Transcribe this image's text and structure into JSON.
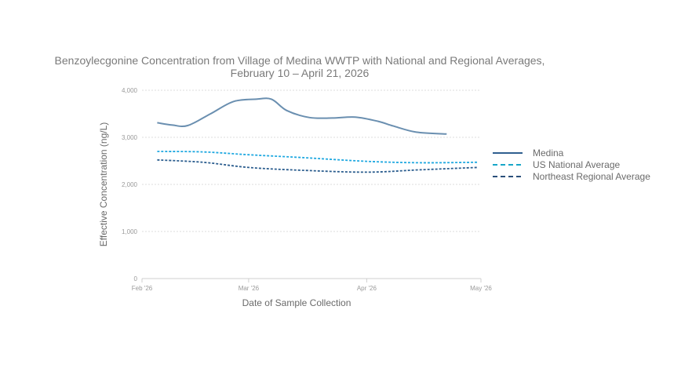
{
  "chart_data": {
    "type": "line",
    "title_line1": "Benzoylecgonine Concentration from Village of Medina WWTP with National and Regional Averages,",
    "title_line2": "February 10 – April 21, 2026",
    "xlabel": "Date of Sample Collection",
    "ylabel": "Effective Concentration (ng/L)",
    "x_ticks": [
      {
        "date": "2026-02-01",
        "label": "Feb '26"
      },
      {
        "date": "2026-03-01",
        "label": "Mar '26"
      },
      {
        "date": "2026-04-01",
        "label": "Apr '26"
      },
      {
        "date": "2026-05-01",
        "label": "May '26"
      }
    ],
    "xlim": [
      "2026-02-01",
      "2026-05-01"
    ],
    "y_ticks": [
      0,
      1000,
      2000,
      3000,
      4000
    ],
    "y_tick_labels": [
      "0",
      "1,000",
      "2,000",
      "3,000",
      "4,000"
    ],
    "ylim": [
      0,
      4000
    ],
    "grid": true,
    "legend_position": "right",
    "series": [
      {
        "name": "Medina",
        "color": "#6a8fb0",
        "legend_color": "#2f5f8f",
        "style": "solid",
        "points": [
          [
            "2026-02-05",
            3310
          ],
          [
            "2026-02-09",
            3260
          ],
          [
            "2026-02-13",
            3250
          ],
          [
            "2026-02-19",
            3500
          ],
          [
            "2026-02-25",
            3760
          ],
          [
            "2026-03-03",
            3810
          ],
          [
            "2026-03-07",
            3810
          ],
          [
            "2026-03-11",
            3570
          ],
          [
            "2026-03-17",
            3420
          ],
          [
            "2026-03-23",
            3410
          ],
          [
            "2026-03-29",
            3430
          ],
          [
            "2026-04-04",
            3340
          ],
          [
            "2026-04-08",
            3240
          ],
          [
            "2026-04-14",
            3110
          ],
          [
            "2026-04-22",
            3070
          ]
        ]
      },
      {
        "name": "US National Average",
        "color": "#1fa8e0",
        "legend_color": "#17a6c8",
        "style": "dashed",
        "points": [
          [
            "2026-02-05",
            2700
          ],
          [
            "2026-02-17",
            2690
          ],
          [
            "2026-03-01",
            2630
          ],
          [
            "2026-03-15",
            2570
          ],
          [
            "2026-04-01",
            2490
          ],
          [
            "2026-04-15",
            2460
          ],
          [
            "2026-04-30",
            2470
          ]
        ]
      },
      {
        "name": "Northeast Regional Average",
        "color": "#2b5d8e",
        "legend_color": "#2b4f7a",
        "style": "dashed",
        "points": [
          [
            "2026-02-05",
            2520
          ],
          [
            "2026-02-17",
            2470
          ],
          [
            "2026-03-01",
            2360
          ],
          [
            "2026-03-15",
            2300
          ],
          [
            "2026-04-01",
            2260
          ],
          [
            "2026-04-15",
            2310
          ],
          [
            "2026-04-30",
            2360
          ]
        ]
      }
    ]
  }
}
